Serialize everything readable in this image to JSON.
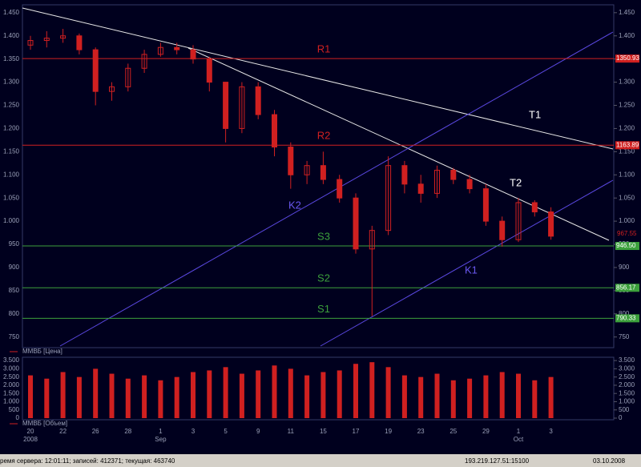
{
  "chart_data": {
    "type": "candlestick",
    "price_name": "ММВБ [Цена]",
    "volume_name": "ММВБ [Объем]",
    "color": "#d02020",
    "categories": [
      "20",
      null,
      "22",
      null,
      "26",
      null,
      "28",
      null,
      "1",
      null,
      "3",
      null,
      "5",
      null,
      "9",
      null,
      "11",
      null,
      "15",
      null,
      "17",
      null,
      "19",
      null,
      "23",
      null,
      "25",
      null,
      "29",
      null,
      "1",
      null,
      "3"
    ],
    "months": [
      "2008",
      null,
      null,
      null,
      null,
      null,
      null,
      null,
      "Sep",
      null,
      null,
      null,
      null,
      null,
      null,
      null,
      null,
      null,
      null,
      null,
      null,
      null,
      null,
      null,
      null,
      null,
      null,
      null,
      null,
      null,
      "Oct",
      null,
      null
    ],
    "open": [
      1380,
      1390,
      1395,
      1400,
      1370,
      1280,
      1290,
      1330,
      1360,
      1375,
      1370,
      1350,
      1300,
      1200,
      1290,
      1230,
      1160,
      1100,
      1120,
      1090,
      1050,
      940,
      980,
      1120,
      1080,
      1060,
      1110,
      1090,
      1070,
      1000,
      960,
      1040,
      1020
    ],
    "high": [
      1400,
      1410,
      1415,
      1405,
      1375,
      1300,
      1340,
      1370,
      1385,
      1385,
      1380,
      1355,
      1300,
      1300,
      1300,
      1240,
      1170,
      1130,
      1150,
      1100,
      1060,
      990,
      1140,
      1130,
      1100,
      1120,
      1115,
      1100,
      1080,
      1010,
      1050,
      1045,
      1030
    ],
    "low": [
      1370,
      1375,
      1385,
      1360,
      1250,
      1260,
      1280,
      1320,
      1355,
      1360,
      1340,
      1280,
      1170,
      1190,
      1220,
      1140,
      1070,
      1080,
      1080,
      1040,
      930,
      795,
      970,
      1060,
      1040,
      1050,
      1080,
      1060,
      990,
      945,
      955,
      1010,
      960
    ],
    "close": [
      1390,
      1395,
      1400,
      1370,
      1280,
      1290,
      1330,
      1360,
      1375,
      1370,
      1350,
      1300,
      1200,
      1290,
      1230,
      1160,
      1100,
      1120,
      1090,
      1050,
      940,
      980,
      1120,
      1080,
      1060,
      1110,
      1090,
      1070,
      1000,
      960,
      1040,
      1020,
      967.55
    ],
    "close_label": "967.55",
    "volume": [
      2600,
      2400,
      2800,
      2500,
      3000,
      2700,
      2400,
      2600,
      2300,
      2500,
      2800,
      2900,
      3100,
      2700,
      2900,
      3200,
      3000,
      2600,
      2800,
      2900,
      3300,
      3400,
      3100,
      2600,
      2500,
      2700,
      2300,
      2400,
      2600,
      2800,
      2700,
      2300,
      2500
    ],
    "ylim": [
      727,
      1467
    ],
    "yticks": [
      750,
      800,
      850,
      900,
      950,
      {
        "value": 1000,
        "label": "1.000"
      },
      {
        "value": 1050,
        "label": "1.050"
      },
      {
        "value": 1100,
        "label": "1.100"
      },
      {
        "value": 1150,
        "label": "1.150"
      },
      {
        "value": 1200,
        "label": "1.200"
      },
      {
        "value": 1250,
        "label": "1.250"
      },
      {
        "value": 1300,
        "label": "1.300"
      },
      {
        "value": 1350,
        "label": "1.350"
      },
      {
        "value": 1400,
        "label": "1.400"
      },
      {
        "value": 1450,
        "label": "1.450"
      }
    ],
    "vlim": [
      0,
      3700
    ],
    "vticks": [
      0,
      500,
      {
        "value": 1000,
        "label": "1.000"
      },
      {
        "value": 1500,
        "label": "1.500"
      },
      {
        "value": 2000,
        "label": "2.000"
      },
      {
        "value": 2500,
        "label": "2.500"
      },
      {
        "value": 3000,
        "label": "3.000"
      },
      {
        "value": 3500,
        "label": "3.500"
      }
    ],
    "levels": [
      {
        "name": "R1",
        "value": 1350.93,
        "label": "1350.93",
        "color": "#d02020"
      },
      {
        "name": "R2",
        "value": 1163.89,
        "label": "1163.89",
        "color": "#d02020"
      },
      {
        "name": "S3",
        "value": 946.5,
        "label": "946.50",
        "color": "#3ca03c"
      },
      {
        "name": "S2",
        "value": 856.17,
        "label": "856.17",
        "color": "#3ca03c"
      },
      {
        "name": "S1",
        "value": 790.33,
        "label": "790.33",
        "color": "#3ca03c"
      }
    ],
    "annotations": [
      "T1",
      "T2",
      "K1",
      "K2"
    ],
    "status": [
      "ремя сервера: 12:01:11; записей: 412371; текущая: 463740",
      "193.219.127.51:15100",
      "03.10.2008"
    ]
  }
}
